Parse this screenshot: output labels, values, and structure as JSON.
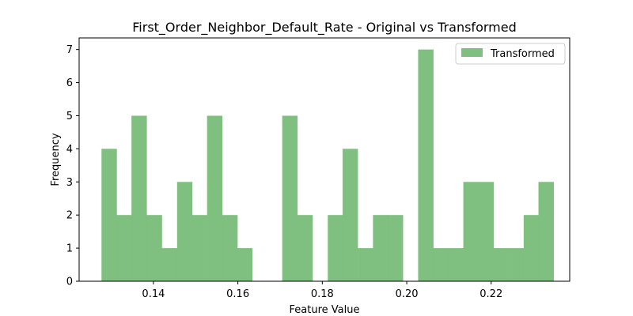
{
  "chart_data": {
    "type": "bar",
    "title": "First_Order_Neighbor_Default_Rate - Original vs Transformed",
    "xlabel": "Feature Value",
    "ylabel": "Frequency",
    "xlim": [
      0.1224,
      0.2386
    ],
    "ylim": [
      0,
      7.35
    ],
    "xticks": [
      0.14,
      0.16,
      0.18,
      0.2,
      0.22
    ],
    "xtick_labels": [
      "0.14",
      "0.16",
      "0.18",
      "0.20",
      "0.22"
    ],
    "yticks": [
      0,
      1,
      2,
      3,
      4,
      5,
      6,
      7
    ],
    "ytick_labels": [
      "0",
      "1",
      "2",
      "3",
      "4",
      "5",
      "6",
      "7"
    ],
    "legend_position": "top-right",
    "bin_width": 0.00357,
    "series": [
      {
        "name": "Transformed",
        "color": "#7fbf7f",
        "bins": [
          {
            "x0": 0.1277,
            "value": 4
          },
          {
            "x0": 0.1313,
            "value": 2
          },
          {
            "x0": 0.1348,
            "value": 5
          },
          {
            "x0": 0.1384,
            "value": 2
          },
          {
            "x0": 0.142,
            "value": 1
          },
          {
            "x0": 0.1456,
            "value": 3
          },
          {
            "x0": 0.1491,
            "value": 2
          },
          {
            "x0": 0.1527,
            "value": 5
          },
          {
            "x0": 0.1563,
            "value": 2
          },
          {
            "x0": 0.1598,
            "value": 1
          },
          {
            "x0": 0.1634,
            "value": 0
          },
          {
            "x0": 0.167,
            "value": 0
          },
          {
            "x0": 0.1705,
            "value": 5
          },
          {
            "x0": 0.1741,
            "value": 2
          },
          {
            "x0": 0.1777,
            "value": 0
          },
          {
            "x0": 0.1813,
            "value": 2
          },
          {
            "x0": 0.1848,
            "value": 4
          },
          {
            "x0": 0.1884,
            "value": 1
          },
          {
            "x0": 0.192,
            "value": 2
          },
          {
            "x0": 0.1955,
            "value": 2
          },
          {
            "x0": 0.1991,
            "value": 0
          },
          {
            "x0": 0.2027,
            "value": 7
          },
          {
            "x0": 0.2062,
            "value": 1
          },
          {
            "x0": 0.2098,
            "value": 1
          },
          {
            "x0": 0.2134,
            "value": 3
          },
          {
            "x0": 0.217,
            "value": 3
          },
          {
            "x0": 0.2205,
            "value": 1
          },
          {
            "x0": 0.2241,
            "value": 1
          },
          {
            "x0": 0.2277,
            "value": 2
          },
          {
            "x0": 0.2312,
            "value": 3
          }
        ]
      }
    ]
  }
}
